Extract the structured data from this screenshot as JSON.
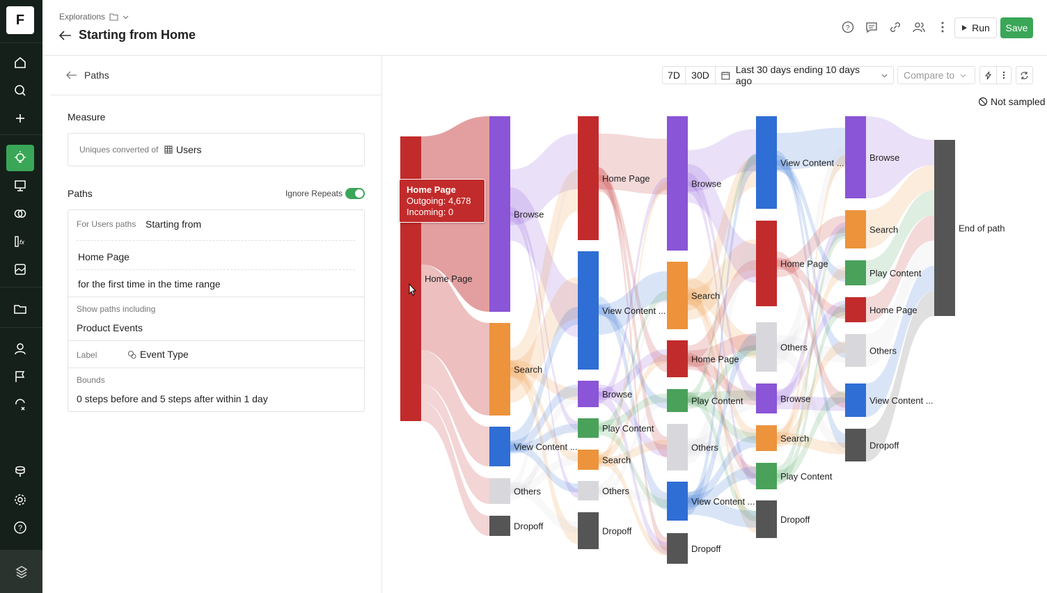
{
  "rail": {
    "logo": "F"
  },
  "header": {
    "breadcrumb": "Explorations",
    "title": "Starting from Home",
    "run_label": "Run",
    "save_label": "Save"
  },
  "left": {
    "back_label": "Paths",
    "measure_title": "Measure",
    "measure_prefix": "Uniques converted of",
    "measure_value": "Users",
    "paths_title": "Paths",
    "ignore_repeats": "Ignore Repeats",
    "for_users": "For Users paths",
    "starting_from": "Starting from",
    "start_event": "Home Page",
    "first_time": "for the first time in the time range",
    "show_paths": "Show paths including",
    "product_events": "Product Events",
    "label_key": "Label",
    "label_value": "Event Type",
    "bounds_key": "Bounds",
    "bounds_value": "0 steps before and 5 steps after within 1 day"
  },
  "controls": {
    "d7": "7D",
    "d30": "30D",
    "range": "Last 30 days ending 10 days ago",
    "compare": "Compare to",
    "not_sampled": "Not sampled"
  },
  "tooltip": {
    "title": "Home Page",
    "outgoing": "Outgoing: 4,678",
    "incoming": "Incoming: 0"
  },
  "colors": {
    "home": "#c22b2b",
    "browse": "#8a55d6",
    "search": "#ec933c",
    "view": "#2f6ed4",
    "others": "#d8d8dc",
    "dropoff": "#555555",
    "play": "#4aa15a",
    "accent": "#3aa657"
  },
  "chart_data": {
    "type": "sankey",
    "steps": [
      {
        "step": 0,
        "nodes": [
          {
            "name": "Home Page",
            "color": "home"
          }
        ]
      },
      {
        "step": 1,
        "nodes": [
          {
            "name": "Browse",
            "color": "browse"
          },
          {
            "name": "Search",
            "color": "search"
          },
          {
            "name": "View Content ...",
            "color": "view"
          },
          {
            "name": "Others",
            "color": "others"
          },
          {
            "name": "Dropoff",
            "color": "dropoff"
          }
        ]
      },
      {
        "step": 2,
        "nodes": [
          {
            "name": "Home Page",
            "color": "home"
          },
          {
            "name": "View Content ...",
            "color": "view"
          },
          {
            "name": "Browse",
            "color": "browse"
          },
          {
            "name": "Play Content",
            "color": "play"
          },
          {
            "name": "Search",
            "color": "search"
          },
          {
            "name": "Others",
            "color": "others"
          },
          {
            "name": "Dropoff",
            "color": "dropoff"
          }
        ]
      },
      {
        "step": 3,
        "nodes": [
          {
            "name": "Browse",
            "color": "browse"
          },
          {
            "name": "Search",
            "color": "search"
          },
          {
            "name": "Home Page",
            "color": "home"
          },
          {
            "name": "Play Content",
            "color": "play"
          },
          {
            "name": "Others",
            "color": "others"
          },
          {
            "name": "View Content ...",
            "color": "view"
          },
          {
            "name": "Dropoff",
            "color": "dropoff"
          }
        ]
      },
      {
        "step": 4,
        "nodes": [
          {
            "name": "View Content ...",
            "color": "view"
          },
          {
            "name": "Home Page",
            "color": "home"
          },
          {
            "name": "Others",
            "color": "others"
          },
          {
            "name": "Browse",
            "color": "browse"
          },
          {
            "name": "Search",
            "color": "search"
          },
          {
            "name": "Play Content",
            "color": "play"
          },
          {
            "name": "Dropoff",
            "color": "dropoff"
          }
        ]
      },
      {
        "step": 5,
        "nodes": [
          {
            "name": "Browse",
            "color": "browse"
          },
          {
            "name": "Search",
            "color": "search"
          },
          {
            "name": "Play Content",
            "color": "play"
          },
          {
            "name": "Home Page",
            "color": "home"
          },
          {
            "name": "Others",
            "color": "others"
          },
          {
            "name": "View Content ...",
            "color": "view"
          },
          {
            "name": "Dropoff",
            "color": "dropoff"
          }
        ]
      },
      {
        "step": 6,
        "nodes": [
          {
            "name": "End of path",
            "color": "dropoff"
          }
        ]
      }
    ]
  }
}
